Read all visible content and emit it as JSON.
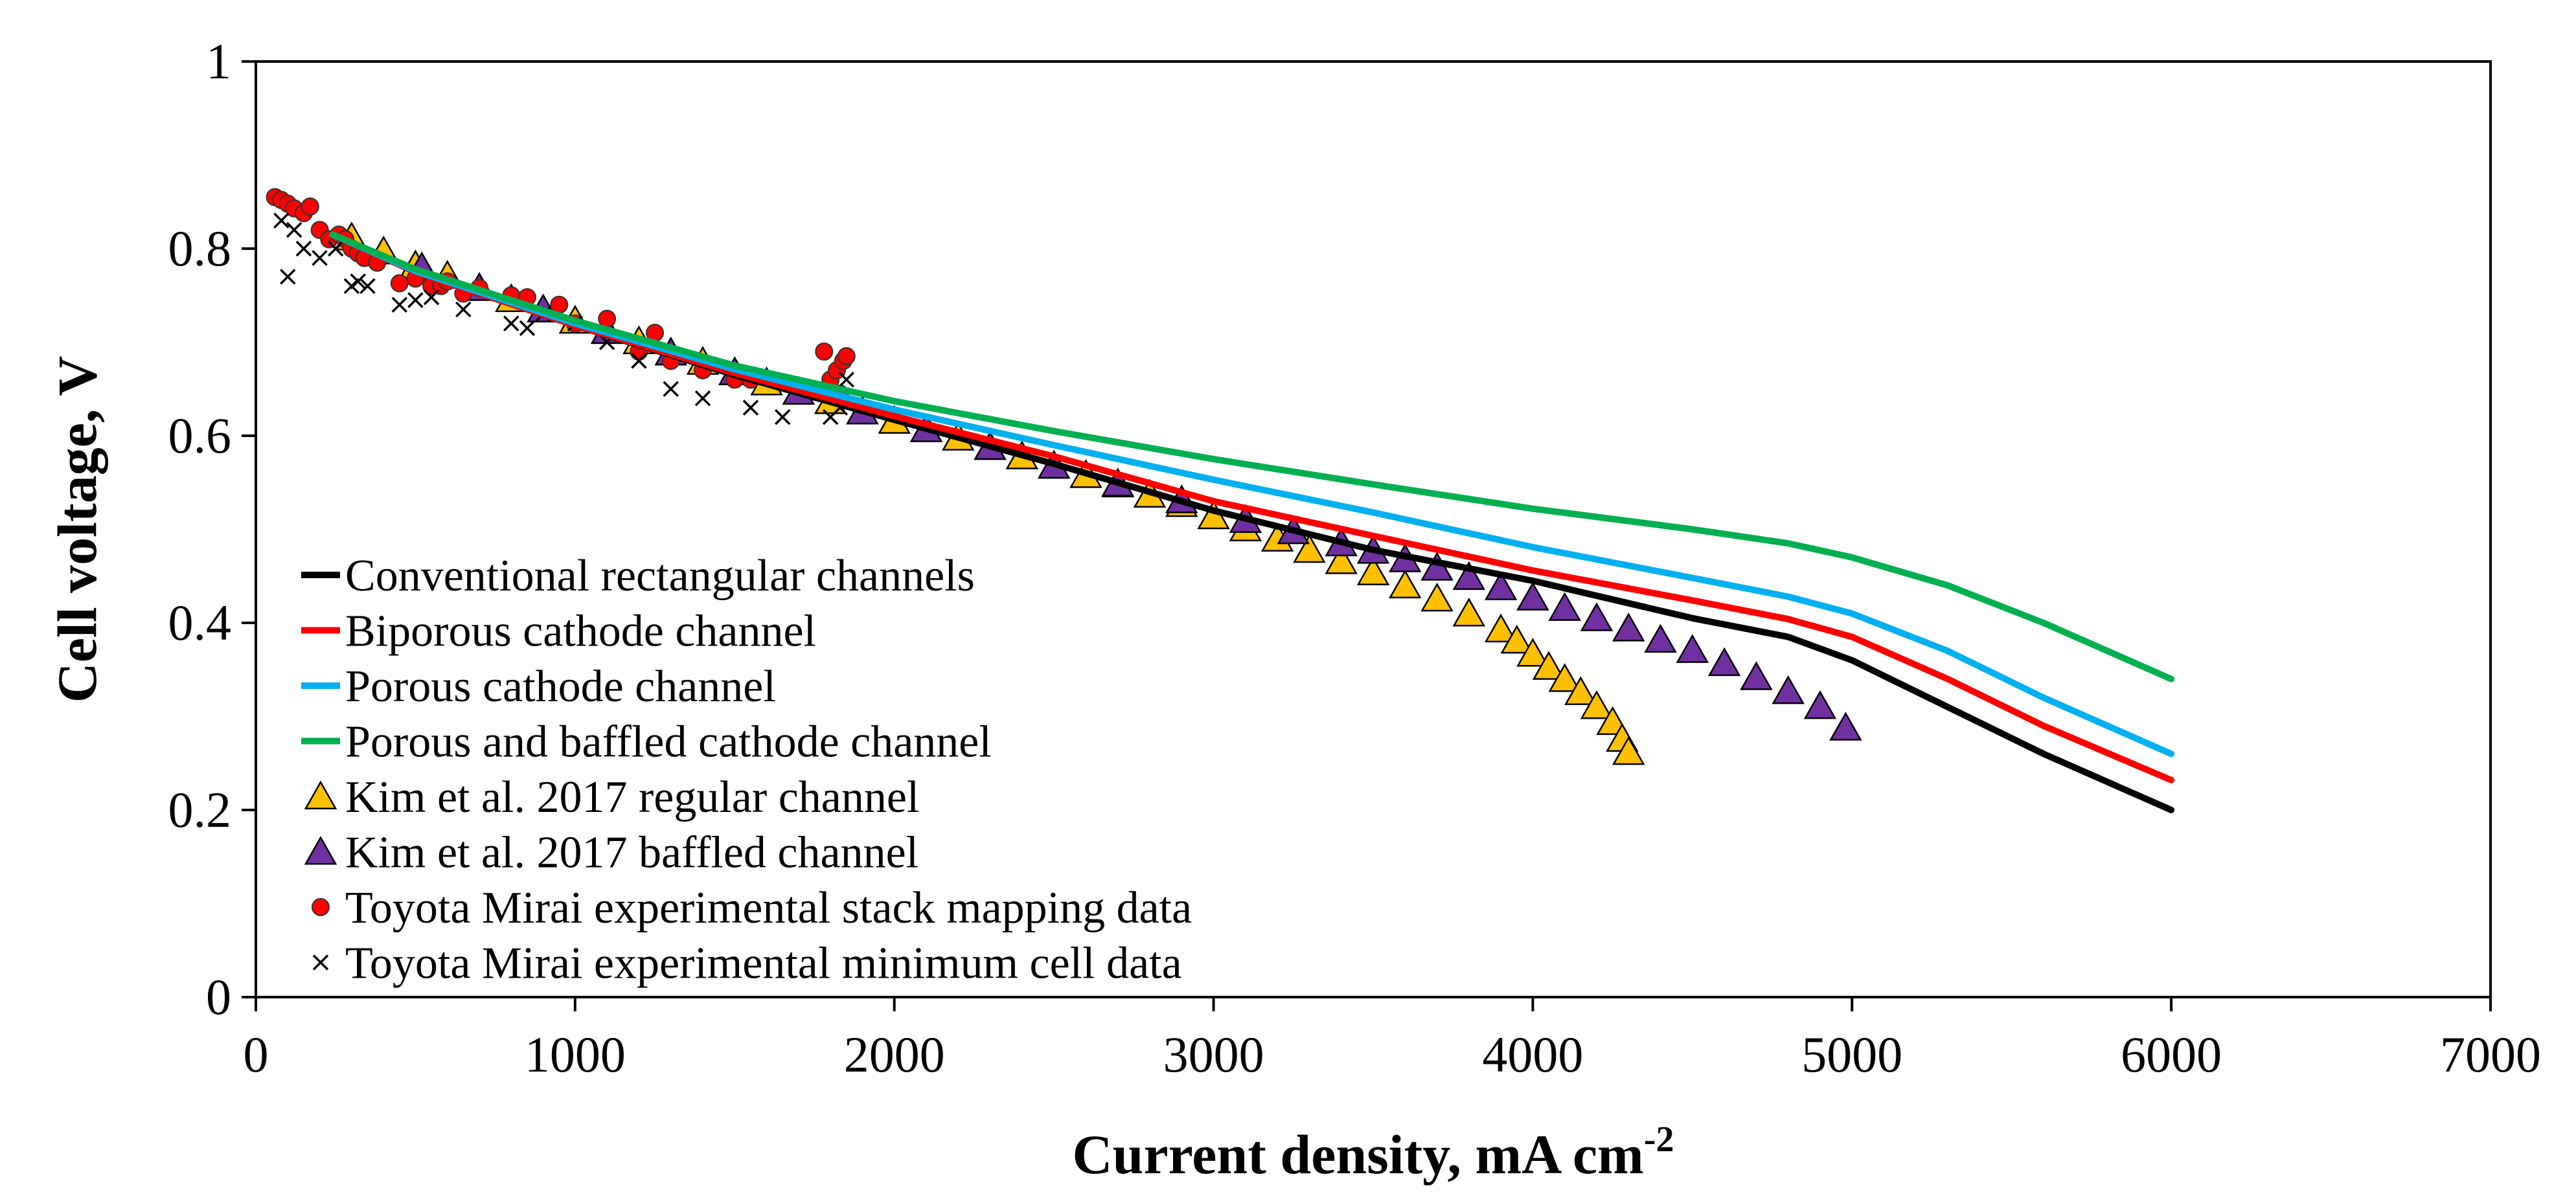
{
  "chart_data": {
    "type": "line",
    "title": "",
    "xlabel": "Current density, mA cm",
    "xlabel_superscript": "-2",
    "ylabel": "Cell voltage, V",
    "xlim": [
      0,
      7000
    ],
    "ylim": [
      0,
      1
    ],
    "xticks": [
      "0",
      "1000",
      "2000",
      "3000",
      "4000",
      "5000",
      "6000",
      "7000"
    ],
    "xtick_values": [
      0,
      1000,
      2000,
      3000,
      4000,
      5000,
      6000,
      7000
    ],
    "yticks": [
      "0",
      "0.2",
      "0.4",
      "0.6",
      "0.8",
      "1"
    ],
    "ytick_values": [
      0,
      0.2,
      0.4,
      0.6,
      0.8,
      1
    ],
    "grid": false,
    "legend_position": "bottom-left",
    "series": [
      {
        "name": "Conventional rectangular channels",
        "kind": "line",
        "color": "#000000",
        "points": [
          [
            240,
            0.815
          ],
          [
            500,
            0.775
          ],
          [
            1000,
            0.718
          ],
          [
            1500,
            0.665
          ],
          [
            2000,
            0.617
          ],
          [
            2500,
            0.57
          ],
          [
            3000,
            0.52
          ],
          [
            3500,
            0.478
          ],
          [
            4000,
            0.445
          ],
          [
            4500,
            0.405
          ],
          [
            4800,
            0.385
          ],
          [
            5000,
            0.36
          ],
          [
            5300,
            0.31
          ],
          [
            5600,
            0.26
          ],
          [
            6000,
            0.2
          ]
        ]
      },
      {
        "name": "Biporous cathode channel",
        "kind": "line",
        "color": "#ff0000",
        "points": [
          [
            240,
            0.815
          ],
          [
            500,
            0.775
          ],
          [
            1000,
            0.718
          ],
          [
            1500,
            0.667
          ],
          [
            2000,
            0.621
          ],
          [
            2500,
            0.578
          ],
          [
            3000,
            0.53
          ],
          [
            3500,
            0.493
          ],
          [
            4000,
            0.456
          ],
          [
            4500,
            0.424
          ],
          [
            4800,
            0.404
          ],
          [
            5000,
            0.385
          ],
          [
            5300,
            0.34
          ],
          [
            5600,
            0.29
          ],
          [
            6000,
            0.232
          ]
        ]
      },
      {
        "name": "Porous cathode channel",
        "kind": "line",
        "color": "#00b0f0",
        "points": [
          [
            240,
            0.815
          ],
          [
            500,
            0.776
          ],
          [
            1000,
            0.72
          ],
          [
            1500,
            0.671
          ],
          [
            2000,
            0.628
          ],
          [
            2500,
            0.59
          ],
          [
            3000,
            0.553
          ],
          [
            3500,
            0.518
          ],
          [
            4000,
            0.481
          ],
          [
            4500,
            0.448
          ],
          [
            4800,
            0.428
          ],
          [
            5000,
            0.41
          ],
          [
            5300,
            0.37
          ],
          [
            5600,
            0.32
          ],
          [
            6000,
            0.26
          ]
        ]
      },
      {
        "name": "Porous and baffled cathode channel",
        "kind": "line",
        "color": "#00b050",
        "points": [
          [
            240,
            0.815
          ],
          [
            500,
            0.778
          ],
          [
            1000,
            0.723
          ],
          [
            1500,
            0.675
          ],
          [
            2000,
            0.637
          ],
          [
            2500,
            0.605
          ],
          [
            3000,
            0.575
          ],
          [
            3500,
            0.548
          ],
          [
            4000,
            0.522
          ],
          [
            4500,
            0.5
          ],
          [
            4800,
            0.485
          ],
          [
            5000,
            0.47
          ],
          [
            5300,
            0.44
          ],
          [
            5600,
            0.4
          ],
          [
            6000,
            0.34
          ]
        ]
      },
      {
        "name": "Kim et al. 2017 regular channel",
        "kind": "marker",
        "marker": "triangle",
        "color": "#ffc000",
        "points": [
          [
            300,
            0.812
          ],
          [
            400,
            0.797
          ],
          [
            500,
            0.782
          ],
          [
            600,
            0.771
          ],
          [
            700,
            0.758
          ],
          [
            800,
            0.746
          ],
          [
            900,
            0.735
          ],
          [
            1000,
            0.723
          ],
          [
            1100,
            0.712
          ],
          [
            1200,
            0.701
          ],
          [
            1300,
            0.689
          ],
          [
            1400,
            0.679
          ],
          [
            1500,
            0.668
          ],
          [
            1600,
            0.657
          ],
          [
            1700,
            0.647
          ],
          [
            1800,
            0.637
          ],
          [
            1900,
            0.626
          ],
          [
            2000,
            0.616
          ],
          [
            2100,
            0.607
          ],
          [
            2200,
            0.598
          ],
          [
            2300,
            0.588
          ],
          [
            2400,
            0.578
          ],
          [
            2500,
            0.568
          ],
          [
            2600,
            0.558
          ],
          [
            2700,
            0.548
          ],
          [
            2800,
            0.537
          ],
          [
            2900,
            0.527
          ],
          [
            3000,
            0.514
          ],
          [
            3100,
            0.501
          ],
          [
            3200,
            0.49
          ],
          [
            3300,
            0.478
          ],
          [
            3400,
            0.466
          ],
          [
            3500,
            0.454
          ],
          [
            3600,
            0.44
          ],
          [
            3700,
            0.426
          ],
          [
            3800,
            0.41
          ],
          [
            3900,
            0.393
          ],
          [
            3950,
            0.381
          ],
          [
            4000,
            0.367
          ],
          [
            4050,
            0.353
          ],
          [
            4100,
            0.34
          ],
          [
            4150,
            0.326
          ],
          [
            4200,
            0.311
          ],
          [
            4250,
            0.294
          ],
          [
            4280,
            0.276
          ],
          [
            4300,
            0.262
          ]
        ]
      },
      {
        "name": "Kim et al. 2017 baffled channel",
        "kind": "marker",
        "marker": "triangle",
        "color": "#7030a0",
        "points": [
          [
            520,
            0.78
          ],
          [
            700,
            0.758
          ],
          [
            900,
            0.735
          ],
          [
            1100,
            0.712
          ],
          [
            1300,
            0.689
          ],
          [
            1500,
            0.668
          ],
          [
            1700,
            0.647
          ],
          [
            1900,
            0.626
          ],
          [
            2100,
            0.607
          ],
          [
            2300,
            0.588
          ],
          [
            2500,
            0.568
          ],
          [
            2700,
            0.549
          ],
          [
            2900,
            0.531
          ],
          [
            3100,
            0.51
          ],
          [
            3250,
            0.498
          ],
          [
            3400,
            0.485
          ],
          [
            3500,
            0.477
          ],
          [
            3600,
            0.468
          ],
          [
            3700,
            0.459
          ],
          [
            3800,
            0.449
          ],
          [
            3900,
            0.438
          ],
          [
            4000,
            0.427
          ],
          [
            4100,
            0.416
          ],
          [
            4200,
            0.405
          ],
          [
            4300,
            0.394
          ],
          [
            4400,
            0.382
          ],
          [
            4500,
            0.371
          ],
          [
            4600,
            0.357
          ],
          [
            4700,
            0.342
          ],
          [
            4800,
            0.327
          ],
          [
            4900,
            0.311
          ],
          [
            4980,
            0.288
          ]
        ]
      },
      {
        "name": "Toyota Mirai experimental stack mapping data",
        "kind": "marker",
        "marker": "circle",
        "color": "#ff0000",
        "points": [
          [
            60,
            0.855
          ],
          [
            80,
            0.852
          ],
          [
            100,
            0.848
          ],
          [
            120,
            0.843
          ],
          [
            150,
            0.838
          ],
          [
            170,
            0.845
          ],
          [
            200,
            0.82
          ],
          [
            230,
            0.81
          ],
          [
            260,
            0.815
          ],
          [
            280,
            0.81
          ],
          [
            300,
            0.8
          ],
          [
            320,
            0.795
          ],
          [
            340,
            0.79
          ],
          [
            380,
            0.785
          ],
          [
            450,
            0.763
          ],
          [
            500,
            0.768
          ],
          [
            550,
            0.76
          ],
          [
            580,
            0.76
          ],
          [
            600,
            0.765
          ],
          [
            650,
            0.752
          ],
          [
            700,
            0.758
          ],
          [
            800,
            0.75
          ],
          [
            850,
            0.748
          ],
          [
            950,
            0.74
          ],
          [
            1000,
            0.72
          ],
          [
            1100,
            0.725
          ],
          [
            1200,
            0.69
          ],
          [
            1250,
            0.71
          ],
          [
            1300,
            0.68
          ],
          [
            1400,
            0.67
          ],
          [
            1500,
            0.66
          ],
          [
            1550,
            0.66
          ],
          [
            1780,
            0.69
          ],
          [
            1800,
            0.66
          ],
          [
            1820,
            0.67
          ],
          [
            1830,
            0.645
          ],
          [
            1840,
            0.68
          ],
          [
            1850,
            0.685
          ]
        ]
      },
      {
        "name": "Toyota Mirai experimental minimum cell data",
        "kind": "marker",
        "marker": "x",
        "color": "#000000",
        "points": [
          [
            80,
            0.83
          ],
          [
            100,
            0.77
          ],
          [
            120,
            0.82
          ],
          [
            150,
            0.8
          ],
          [
            200,
            0.79
          ],
          [
            250,
            0.8
          ],
          [
            300,
            0.76
          ],
          [
            320,
            0.765
          ],
          [
            350,
            0.76
          ],
          [
            450,
            0.74
          ],
          [
            500,
            0.745
          ],
          [
            550,
            0.748
          ],
          [
            650,
            0.735
          ],
          [
            800,
            0.72
          ],
          [
            850,
            0.715
          ],
          [
            900,
            0.73
          ],
          [
            1000,
            0.72
          ],
          [
            1100,
            0.7
          ],
          [
            1200,
            0.68
          ],
          [
            1300,
            0.65
          ],
          [
            1400,
            0.64
          ],
          [
            1550,
            0.63
          ],
          [
            1650,
            0.62
          ],
          [
            1800,
            0.62
          ],
          [
            1830,
            0.63
          ],
          [
            1850,
            0.66
          ]
        ]
      }
    ]
  }
}
